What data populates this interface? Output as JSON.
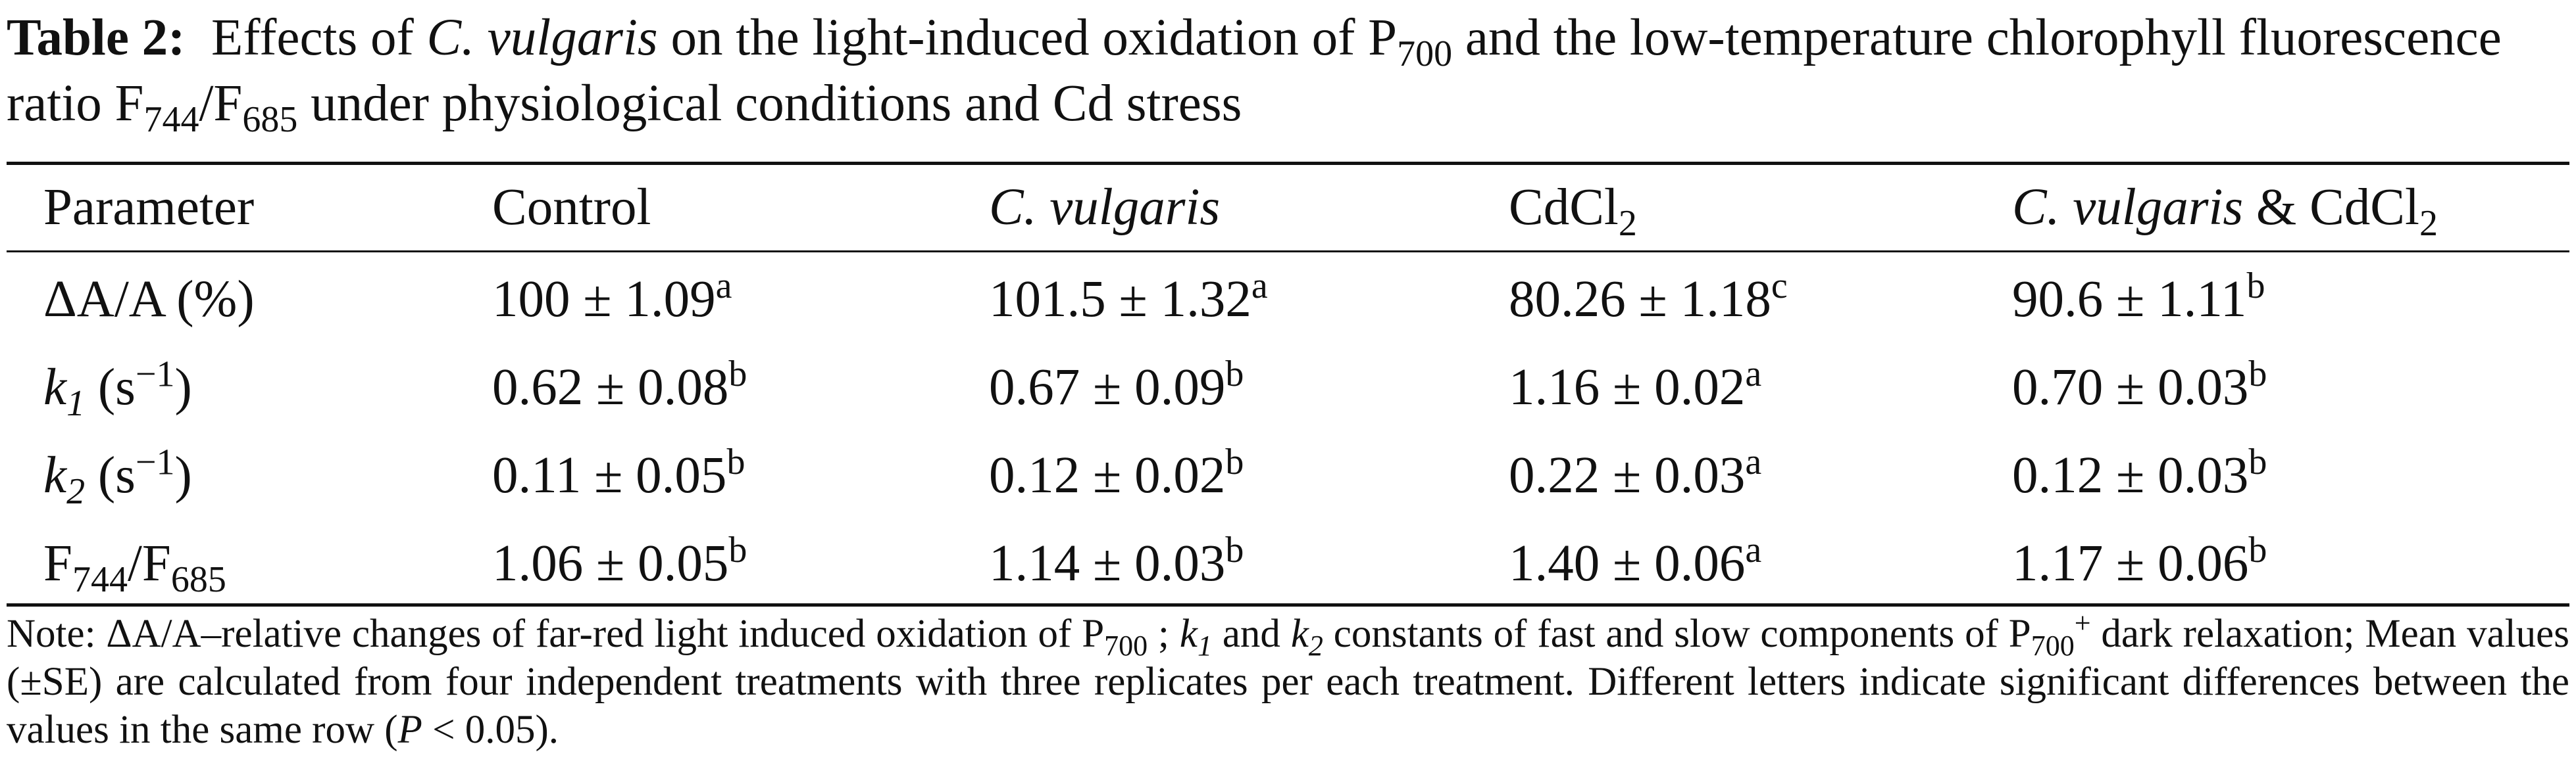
{
  "caption": {
    "table_label": "Table 2:",
    "text_1": "Effects of",
    "species_1": "C. vulgaris",
    "text_2": "on the light-induced oxidation of P",
    "p700_sub": "700",
    "text_3": "and the low-temperature chlorophyll fluorescence ratio F",
    "f744_sub": "744",
    "slash": "/F",
    "f685_sub": "685",
    "text_4": "under physiological conditions and Cd stress"
  },
  "table": {
    "headers": {
      "parameter": "Parameter",
      "control": "Control",
      "cvulgaris": "C. vulgaris",
      "cdcl2_main": "CdCl",
      "cdcl2_sub": "2",
      "combo_species": "C. vulgaris",
      "combo_rest": "& CdCl",
      "combo_sub": "2"
    },
    "row_labels": {
      "delta": "ΔA/A (%)",
      "k1_symbol": "k",
      "k1_index": "1",
      "k1_unit_open": "(s",
      "k1_unit_exp": "−1",
      "k1_unit_close": ")",
      "k2_symbol": "k",
      "k2_index": "2",
      "k2_unit_open": "(s",
      "k2_unit_exp": "−1",
      "k2_unit_close": ")",
      "f_main": "F",
      "f_sub1": "744",
      "f_slash": "/F",
      "f_sub2": "685"
    },
    "rows": [
      {
        "cells": [
          {
            "value": "100 ± 1.09",
            "sig": "a"
          },
          {
            "value": "101.5 ± 1.32",
            "sig": "a"
          },
          {
            "value": "80.26 ± 1.18",
            "sig": "c"
          },
          {
            "value": "90.6 ± 1.11",
            "sig": "b"
          }
        ]
      },
      {
        "cells": [
          {
            "value": "0.62 ± 0.08",
            "sig": "b"
          },
          {
            "value": "0.67 ± 0.09",
            "sig": "b"
          },
          {
            "value": "1.16 ± 0.02",
            "sig": "a"
          },
          {
            "value": "0.70 ± 0.03",
            "sig": "b"
          }
        ]
      },
      {
        "cells": [
          {
            "value": "0.11 ± 0.05",
            "sig": "b"
          },
          {
            "value": "0.12 ± 0.02",
            "sig": "b"
          },
          {
            "value": "0.22 ± 0.03",
            "sig": "a"
          },
          {
            "value": "0.12 ± 0.03",
            "sig": "b"
          }
        ]
      },
      {
        "cells": [
          {
            "value": "1.06 ± 0.05",
            "sig": "b"
          },
          {
            "value": "1.14 ± 0.03",
            "sig": "b"
          },
          {
            "value": "1.40 ± 0.06",
            "sig": "a"
          },
          {
            "value": "1.17 ± 0.06",
            "sig": "b"
          }
        ]
      }
    ]
  },
  "note": {
    "lead": "Note: ΔA/A–relative changes of far-red light induced oxidation of P",
    "p700_sub_1": "700",
    "part_2": " ; ",
    "k_a": "k",
    "k_a_sub": "1",
    "part_3": " and ",
    "k_b": "k",
    "k_b_sub": "2",
    "part_4": " constants of fast and slow components of P",
    "p700_sub_2": "700",
    "p700_sup": "+",
    "part_5": " dark relaxation; Mean values (±SE) are calculated from four independent treatments with three replicates per each treatment. Different letters indicate significant differences between the values in the same row (",
    "p_symbol": "P",
    "part_6": " < 0.05)."
  }
}
